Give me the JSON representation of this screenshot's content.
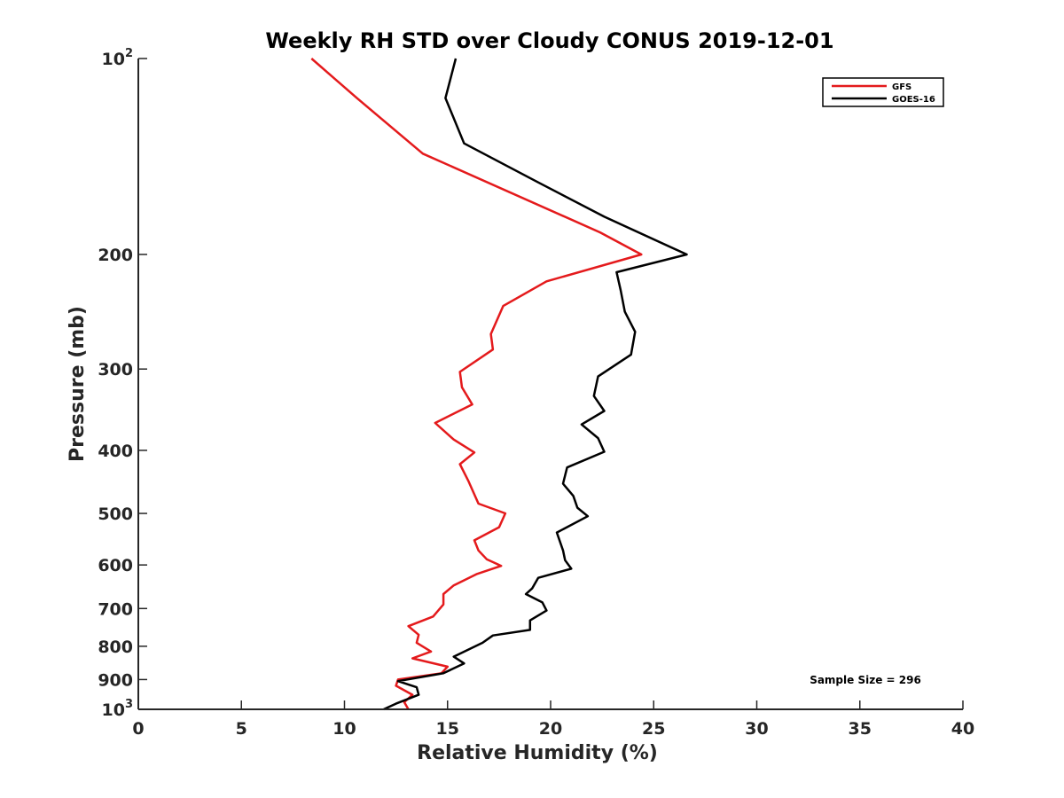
{
  "chart_data": {
    "type": "line",
    "title": "Weekly RH STD over Cloudy CONUS 2019-12-01",
    "xlabel": "Relative Humidity (%)",
    "ylabel": "Pressure (mb)",
    "xlim": [
      0,
      40
    ],
    "ylim": [
      100,
      1000
    ],
    "yscale": "log",
    "yreversed": true,
    "x_ticks": [
      0,
      5,
      10,
      15,
      20,
      25,
      30,
      35,
      40
    ],
    "y_ticks": [
      {
        "value": 100,
        "label": "10",
        "exp": "2"
      },
      {
        "value": 200,
        "label": "200"
      },
      {
        "value": 300,
        "label": "300"
      },
      {
        "value": 400,
        "label": "400"
      },
      {
        "value": 500,
        "label": "500"
      },
      {
        "value": 600,
        "label": "600"
      },
      {
        "value": 700,
        "label": "700"
      },
      {
        "value": 800,
        "label": "800"
      },
      {
        "value": 900,
        "label": "900"
      },
      {
        "value": 1000,
        "label": "10",
        "exp": "3"
      }
    ],
    "grid": false,
    "legend_position": "top-right",
    "annotation": "Sample Size = 296",
    "series": [
      {
        "name": "GFS",
        "color": "#e41a1c",
        "x": [
          8.4,
          10.6,
          13.8,
          22.4,
          24.4,
          19.8,
          17.7,
          17.1,
          17.2,
          15.6,
          15.7,
          16.2,
          14.4,
          15.3,
          16.3,
          15.6,
          16.0,
          16.5,
          17.8,
          17.5,
          16.3,
          16.5,
          16.9,
          17.6,
          16.4,
          15.3,
          14.8,
          14.8,
          14.3,
          13.1,
          13.6,
          13.5,
          14.2,
          13.3,
          15.0,
          14.7,
          12.6,
          12.5,
          13.3,
          12.9,
          13.1
        ],
        "y": [
          100,
          115,
          140,
          185,
          200,
          220,
          240,
          265,
          280,
          303,
          320,
          340,
          363,
          385,
          403,
          420,
          445,
          483,
          500,
          525,
          550,
          570,
          588,
          602,
          620,
          645,
          665,
          690,
          720,
          745,
          768,
          790,
          815,
          835,
          860,
          880,
          900,
          920,
          950,
          975,
          1000
        ]
      },
      {
        "name": "GOES-16",
        "color": "#000000",
        "x": [
          15.4,
          14.9,
          15.8,
          19.4,
          22.6,
          26.6,
          23.2,
          23.4,
          23.6,
          24.1,
          23.9,
          22.3,
          22.1,
          22.6,
          21.5,
          22.3,
          22.6,
          20.8,
          20.6,
          21.1,
          21.3,
          21.8,
          20.3,
          20.6,
          20.7,
          21.0,
          19.4,
          19.1,
          18.8,
          19.6,
          19.8,
          19.0,
          19.0,
          17.2,
          16.7,
          15.3,
          15.8,
          14.8,
          12.6,
          13.5,
          13.6,
          12.5,
          11.9
        ],
        "y": [
          100,
          115,
          135,
          155,
          175,
          200,
          213,
          227,
          245,
          263,
          285,
          308,
          330,
          348,
          365,
          383,
          402,
          425,
          450,
          470,
          490,
          505,
          535,
          570,
          590,
          608,
          628,
          652,
          665,
          685,
          705,
          730,
          755,
          770,
          790,
          830,
          850,
          880,
          905,
          925,
          950,
          980,
          1000
        ]
      }
    ]
  }
}
